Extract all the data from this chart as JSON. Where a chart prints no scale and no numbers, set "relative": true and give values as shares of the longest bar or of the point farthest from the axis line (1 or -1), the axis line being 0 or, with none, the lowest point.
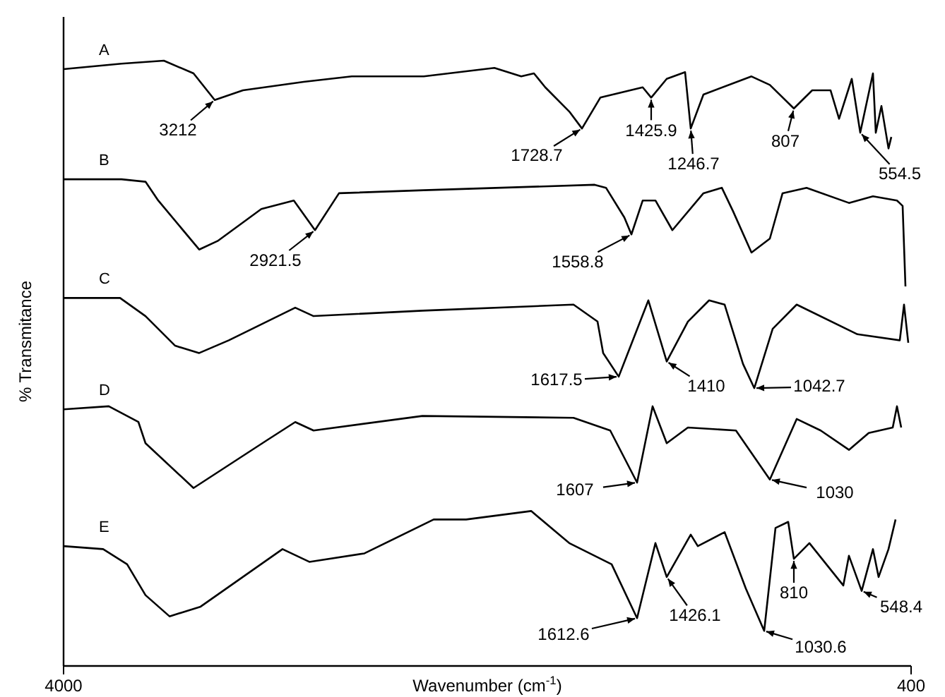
{
  "chart_data": {
    "type": "line",
    "xlabel": "Wavenumber (cm$^{-1}$)",
    "ylabel": "% Transmitance",
    "xlim": [
      4000,
      400
    ],
    "xticks": [
      4000,
      400
    ],
    "relative": true,
    "grid": false,
    "legend": false,
    "marker": "none",
    "line_style": "solid",
    "series": [
      {
        "name": "A",
        "color": "#000000",
        "x": [
          4000,
          3754,
          3574,
          3448,
          3358,
          3238,
          2980,
          2776,
          2470,
          2170,
          2056,
          2002,
          1954,
          1852,
          1798,
          1720,
          1540,
          1504,
          1438,
          1360,
          1336,
          1282,
          1078,
          1000,
          898,
          820,
          742,
          706,
          652,
          616,
          562,
          550,
          526,
          496,
          484
        ],
        "values": [
          0.986,
          0.995,
          1,
          0.979,
          0.935,
          0.951,
          0.965,
          0.974,
          0.974,
          0.988,
          0.974,
          0.979,
          0.956,
          0.916,
          0.888,
          0.939,
          0.956,
          0.939,
          0.97,
          0.981,
          0.888,
          0.944,
          0.974,
          0.96,
          0.921,
          0.951,
          0.951,
          0.904,
          0.97,
          0.881,
          0.979,
          0.881,
          0.925,
          0.855,
          0.874
        ]
      },
      {
        "name": "B",
        "color": "#000000",
        "x": [
          4000,
          3754,
          3652,
          3598,
          3424,
          3346,
          3160,
          3022,
          2932,
          2830,
          2470,
          1744,
          1696,
          1618,
          1588,
          1540,
          1486,
          1414,
          1282,
          1204,
          1156,
          1078,
          1000,
          946,
          844,
          664,
          562,
          460,
          436,
          424
        ],
        "values": [
          0.804,
          0.804,
          0.8,
          0.769,
          0.688,
          0.702,
          0.755,
          0.769,
          0.72,
          0.781,
          0.786,
          0.795,
          0.79,
          0.741,
          0.713,
          0.769,
          0.769,
          0.72,
          0.781,
          0.79,
          0.751,
          0.683,
          0.706,
          0.781,
          0.79,
          0.765,
          0.776,
          0.769,
          0.76,
          0.627
        ]
      },
      {
        "name": "C",
        "color": "#000000",
        "x": [
          4000,
          3760,
          3652,
          3526,
          3424,
          3298,
          3016,
          2938,
          2476,
          1834,
          1732,
          1708,
          1642,
          1516,
          1438,
          1348,
          1258,
          1192,
          1114,
          1066,
          988,
          886,
          628,
          448,
          430,
          412
        ],
        "values": [
          0.608,
          0.608,
          0.578,
          0.529,
          0.517,
          0.538,
          0.592,
          0.578,
          0.587,
          0.597,
          0.569,
          0.517,
          0.478,
          0.604,
          0.503,
          0.569,
          0.604,
          0.597,
          0.499,
          0.459,
          0.557,
          0.597,
          0.548,
          0.538,
          0.597,
          0.534
        ]
      },
      {
        "name": "D",
        "color": "#000000",
        "x": [
          4000,
          3808,
          3682,
          3652,
          3448,
          3136,
          3016,
          2938,
          2476,
          1834,
          1678,
          1564,
          1498,
          1438,
          1348,
          1144,
          1000,
          886,
          784,
          664,
          580,
          478,
          460,
          442
        ],
        "values": [
          0.424,
          0.429,
          0.403,
          0.368,
          0.294,
          0.373,
          0.403,
          0.389,
          0.413,
          0.41,
          0.389,
          0.303,
          0.429,
          0.368,
          0.394,
          0.389,
          0.308,
          0.408,
          0.389,
          0.357,
          0.385,
          0.394,
          0.429,
          0.394
        ]
      },
      {
        "name": "E",
        "color": "#000000",
        "x": [
          4000,
          3832,
          3730,
          3652,
          3550,
          3418,
          3070,
          2956,
          2722,
          2428,
          2290,
          2014,
          1852,
          1672,
          1564,
          1486,
          1438,
          1336,
          1306,
          1192,
          1102,
          1024,
          976,
          922,
          898,
          832,
          688,
          664,
          610,
          562,
          538,
          496,
          466
        ],
        "values": [
          0.198,
          0.193,
          0.168,
          0.117,
          0.082,
          0.098,
          0.193,
          0.172,
          0.186,
          0.242,
          0.242,
          0.256,
          0.203,
          0.168,
          0.079,
          0.203,
          0.147,
          0.217,
          0.198,
          0.221,
          0.128,
          0.058,
          0.228,
          0.238,
          0.177,
          0.203,
          0.133,
          0.182,
          0.124,
          0.193,
          0.147,
          0.193,
          0.242
        ]
      }
    ],
    "annotations": [
      {
        "text": "3212",
        "x": 3358,
        "y": 0.935
      },
      {
        "text": "1728.7",
        "x": 1798,
        "y": 0.888
      },
      {
        "text": "1425.9",
        "x": 1504,
        "y": 0.939
      },
      {
        "text": "1246.7",
        "x": 1336,
        "y": 0.888
      },
      {
        "text": "807",
        "x": 898,
        "y": 0.921
      },
      {
        "text": "554.5",
        "x": 616,
        "y": 0.881
      },
      {
        "text": "2921.5",
        "x": 2932,
        "y": 0.72
      },
      {
        "text": "1558.8",
        "x": 1588,
        "y": 0.713
      },
      {
        "text": "1617.5",
        "x": 1642,
        "y": 0.478
      },
      {
        "text": "1410",
        "x": 1438,
        "y": 0.503
      },
      {
        "text": "1042.7",
        "x": 1066,
        "y": 0.459
      },
      {
        "text": "1607",
        "x": 1564,
        "y": 0.303
      },
      {
        "text": "1030",
        "x": 1000,
        "y": 0.308
      },
      {
        "text": "1612.6",
        "x": 1564,
        "y": 0.079
      },
      {
        "text": "1426.1",
        "x": 1438,
        "y": 0.147
      },
      {
        "text": "1030.6",
        "x": 1024,
        "y": 0.058
      },
      {
        "text": "810",
        "x": 898,
        "y": 0.177
      },
      {
        "text": "548.4",
        "x": 610,
        "y": 0.124
      }
    ]
  }
}
